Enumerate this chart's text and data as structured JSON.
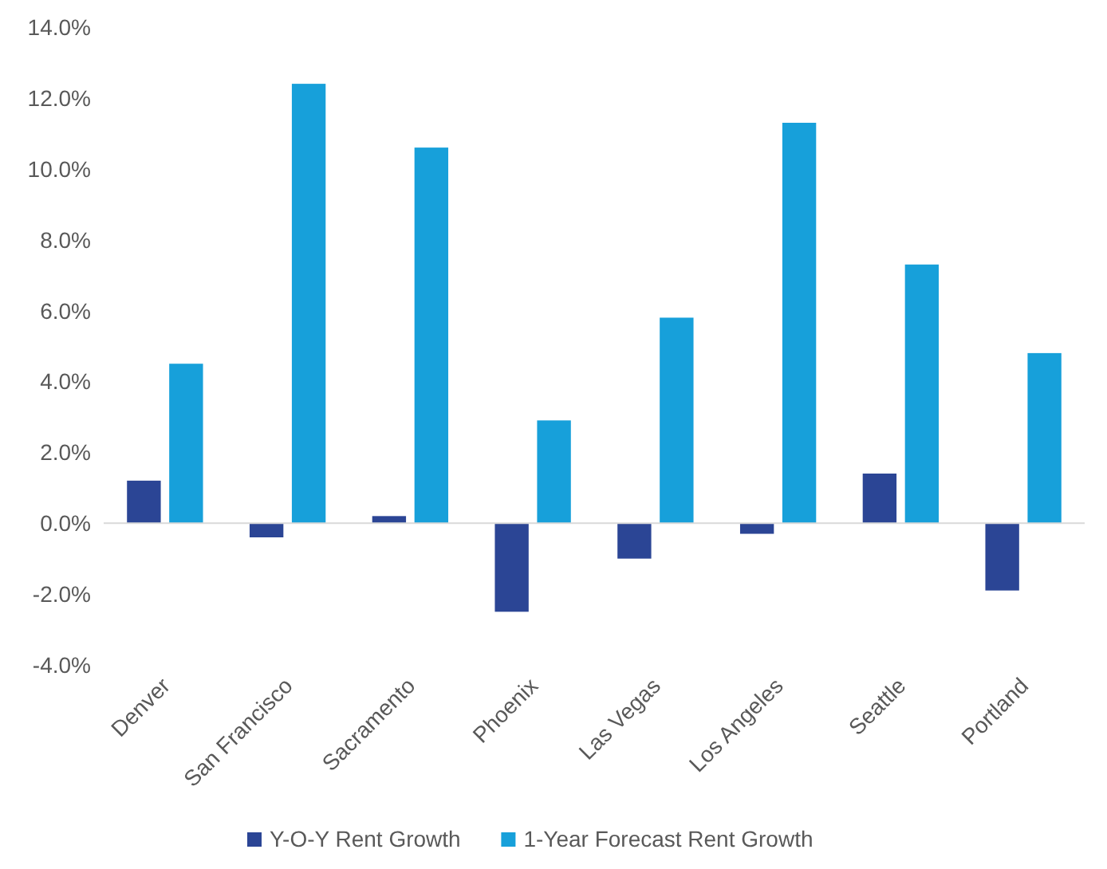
{
  "chart_data": {
    "type": "bar",
    "categories": [
      "Denver",
      "San Francisco",
      "Sacramento",
      "Phoenix",
      "Las Vegas",
      "Los Angeles",
      "Seattle",
      "Portland"
    ],
    "series": [
      {
        "name": "Y-O-Y Rent Growth",
        "color": "#2b4595",
        "values": [
          1.2,
          -0.4,
          0.2,
          -2.5,
          -1.0,
          -0.3,
          1.4,
          -1.9
        ]
      },
      {
        "name": "1-Year Forecast Rent Growth",
        "color": "#17a0da",
        "values": [
          4.5,
          12.4,
          10.6,
          2.9,
          5.8,
          11.3,
          7.3,
          4.8
        ]
      }
    ],
    "ylim": [
      -4,
      14
    ],
    "yticks": [
      {
        "value": -4,
        "label": "-4.0%"
      },
      {
        "value": -2,
        "label": "-2.0%"
      },
      {
        "value": 0,
        "label": "0.0%"
      },
      {
        "value": 2,
        "label": "2.0%"
      },
      {
        "value": 4,
        "label": "4.0%"
      },
      {
        "value": 6,
        "label": "6.0%"
      },
      {
        "value": 8,
        "label": "8.0%"
      },
      {
        "value": 10,
        "label": "10.0%"
      },
      {
        "value": 12,
        "label": "12.0%"
      },
      {
        "value": 14,
        "label": "14.0%"
      }
    ],
    "legend": "bottom"
  }
}
